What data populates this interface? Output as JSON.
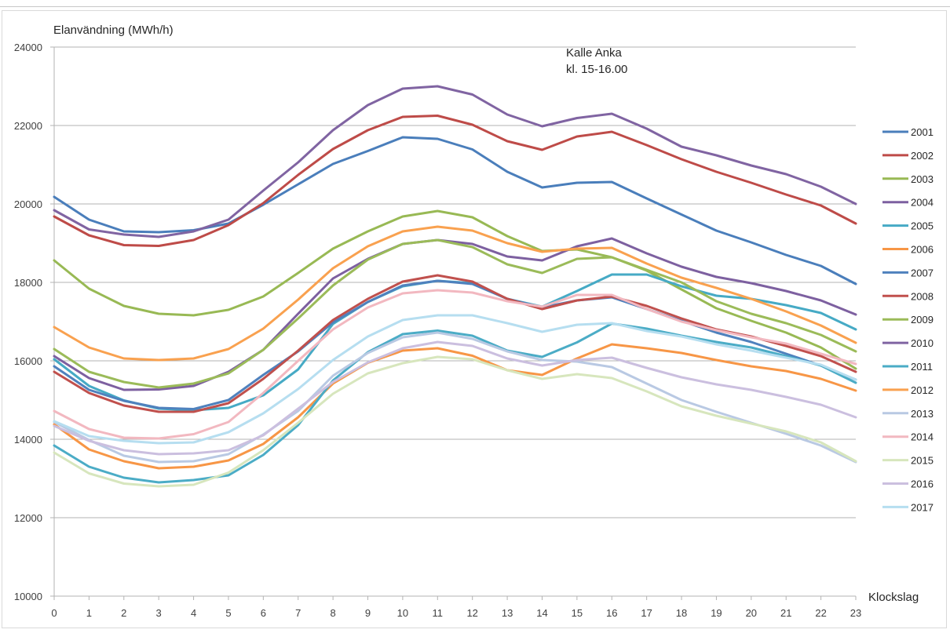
{
  "chart_data": {
    "type": "line",
    "title": "",
    "ylabel": "Elanvändning (MWh/h)",
    "xlabel": "Klockslag",
    "annotation": [
      "Kalle Anka",
      "kl. 15-16.00"
    ],
    "ylim": [
      10000,
      24000
    ],
    "yticks": [
      10000,
      12000,
      14000,
      16000,
      18000,
      20000,
      22000,
      24000
    ],
    "ytick_labels": [
      "10000",
      "12000",
      "14000",
      "16000",
      "18000",
      "20000",
      "22000",
      "24000"
    ],
    "x": [
      0,
      1,
      2,
      3,
      4,
      5,
      6,
      7,
      8,
      9,
      10,
      11,
      12,
      13,
      14,
      15,
      16,
      17,
      18,
      19,
      20,
      21,
      22,
      23
    ],
    "xtick_labels": [
      "0",
      "1",
      "2",
      "3",
      "4",
      "5",
      "6",
      "7",
      "8",
      "9",
      "10",
      "11",
      "12",
      "13",
      "14",
      "15",
      "16",
      "17",
      "18",
      "19",
      "20",
      "21",
      "22",
      "23"
    ],
    "grid": "horizontal",
    "legend_position": "right",
    "series": [
      {
        "name": "2001",
        "color": "#4a7ebb",
        "values": [
          20180,
          19600,
          19300,
          19280,
          19330,
          19500,
          19980,
          20500,
          21020,
          21350,
          21700,
          21660,
          21390,
          20820,
          20420,
          20540,
          20560,
          20140,
          19730,
          19320,
          19020,
          18700,
          18420,
          17960
        ]
      },
      {
        "name": "2002",
        "color": "#be4b48",
        "values": [
          19680,
          19200,
          18950,
          18930,
          19080,
          19460,
          20020,
          20740,
          21400,
          21880,
          22220,
          22250,
          22020,
          21600,
          21380,
          21720,
          21840,
          21500,
          21140,
          20820,
          20540,
          20240,
          19960,
          19500
        ]
      },
      {
        "name": "2003",
        "color": "#98b954",
        "values": [
          18560,
          17840,
          17400,
          17200,
          17160,
          17300,
          17640,
          18240,
          18860,
          19300,
          19680,
          19820,
          19660,
          19180,
          18800,
          18840,
          18640,
          18300,
          17820,
          17340,
          17020,
          16720,
          16340,
          15800
        ]
      },
      {
        "name": "2004",
        "color": "#7d60a0",
        "values": [
          16120,
          15560,
          15260,
          15270,
          15360,
          15720,
          16280,
          17200,
          18100,
          18600,
          18980,
          19080,
          18980,
          18660,
          18560,
          18920,
          19120,
          18740,
          18400,
          18140,
          17980,
          17780,
          17540,
          17180
        ]
      },
      {
        "name": "2005",
        "color": "#46aac5",
        "values": [
          16040,
          15360,
          14990,
          14780,
          14740,
          14800,
          15120,
          15780,
          16940,
          17500,
          17900,
          18040,
          17980,
          17580,
          17380,
          17780,
          18200,
          18200,
          17900,
          17660,
          17580,
          17420,
          17220,
          16800
        ]
      },
      {
        "name": "2006",
        "color": "#f79646",
        "values": [
          14380,
          13740,
          13440,
          13260,
          13300,
          13460,
          13880,
          14560,
          15420,
          15950,
          16260,
          16320,
          16130,
          15760,
          15640,
          16060,
          16420,
          16320,
          16200,
          16020,
          15860,
          15740,
          15540,
          15240
        ]
      },
      {
        "name": "2007",
        "color": "#4f81bd",
        "values": [
          15860,
          15260,
          14980,
          14800,
          14770,
          15000,
          15640,
          16240,
          16980,
          17500,
          17920,
          18040,
          17960,
          17580,
          17360,
          17540,
          17620,
          17320,
          17020,
          16720,
          16480,
          16180,
          15880,
          15520
        ]
      },
      {
        "name": "2008",
        "color": "#c0504d",
        "values": [
          15720,
          15180,
          14860,
          14700,
          14700,
          14920,
          15540,
          16260,
          17040,
          17580,
          18020,
          18180,
          18020,
          17580,
          17320,
          17540,
          17640,
          17400,
          17080,
          16800,
          16620,
          16380,
          16120,
          15720
        ]
      },
      {
        "name": "2009",
        "color": "#9bbb59",
        "values": [
          16300,
          15720,
          15460,
          15320,
          15420,
          15680,
          16280,
          17080,
          17920,
          18580,
          18980,
          19080,
          18900,
          18460,
          18240,
          18600,
          18640,
          18320,
          18000,
          17520,
          17200,
          16960,
          16660,
          16240
        ]
      },
      {
        "name": "2010",
        "color": "#8064a2",
        "values": [
          19840,
          19350,
          19220,
          19160,
          19300,
          19600,
          20340,
          21060,
          21880,
          22520,
          22940,
          23000,
          22790,
          22280,
          21980,
          22190,
          22300,
          21920,
          21460,
          21240,
          20980,
          20760,
          20440,
          20000
        ]
      },
      {
        "name": "2011",
        "color": "#4bacc6",
        "values": [
          13840,
          13300,
          13020,
          12900,
          12960,
          13080,
          13600,
          14360,
          15500,
          16220,
          16680,
          16770,
          16640,
          16260,
          16100,
          16470,
          16950,
          16820,
          16640,
          16480,
          16340,
          16120,
          15880,
          15440
        ]
      },
      {
        "name": "2012",
        "color": "#f9a14f",
        "values": [
          16860,
          16340,
          16060,
          16020,
          16060,
          16300,
          16820,
          17560,
          18360,
          18920,
          19300,
          19420,
          19320,
          19000,
          18780,
          18860,
          18880,
          18480,
          18120,
          17860,
          17580,
          17260,
          16900,
          16460
        ]
      },
      {
        "name": "2013",
        "color": "#b9c9e3",
        "values": [
          14440,
          13980,
          13580,
          13420,
          13440,
          13620,
          14120,
          14720,
          15620,
          16200,
          16600,
          16720,
          16560,
          16240,
          16020,
          15980,
          15840,
          15420,
          15000,
          14700,
          14420,
          14140,
          13840,
          13420
        ]
      },
      {
        "name": "2014",
        "color": "#f2b8c0",
        "values": [
          14720,
          14260,
          14040,
          14020,
          14130,
          14440,
          15180,
          16000,
          16800,
          17360,
          17720,
          17800,
          17740,
          17520,
          17380,
          17680,
          17680,
          17320,
          17000,
          16780,
          16600,
          16440,
          16180,
          15920
        ]
      },
      {
        "name": "2015",
        "color": "#d7e6bd",
        "values": [
          13660,
          13130,
          12870,
          12800,
          12840,
          13150,
          13720,
          14420,
          15160,
          15680,
          15940,
          16100,
          16040,
          15760,
          15540,
          15660,
          15560,
          15220,
          14840,
          14600,
          14400,
          14200,
          13920,
          13440
        ]
      },
      {
        "name": "2016",
        "color": "#cbbfdf",
        "values": [
          14340,
          13960,
          13720,
          13620,
          13640,
          13720,
          14100,
          14780,
          15460,
          15960,
          16320,
          16480,
          16380,
          16060,
          15880,
          16020,
          16080,
          15820,
          15580,
          15400,
          15260,
          15080,
          14880,
          14560
        ]
      },
      {
        "name": "2017",
        "color": "#b6def0",
        "values": [
          14460,
          14080,
          13960,
          13900,
          13920,
          14180,
          14660,
          15280,
          16020,
          16620,
          17040,
          17160,
          17160,
          16960,
          16740,
          16920,
          16960,
          16760,
          16620,
          16420,
          16260,
          16080,
          15900,
          15520
        ]
      }
    ]
  }
}
